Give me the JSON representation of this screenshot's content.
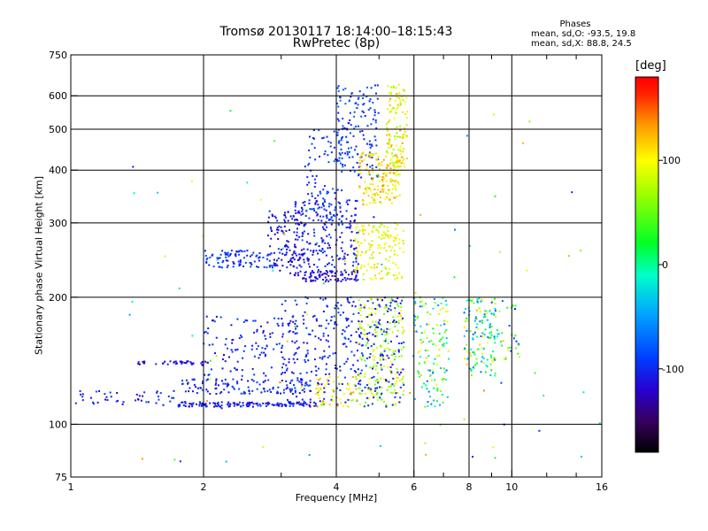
{
  "titles": {
    "line1": "Tromsø 20130117 18:14:00–18:15:43",
    "line2": "RwPretec (8p)"
  },
  "phases_box": {
    "title": "Phases",
    "o_line": "mean, sd,O: -93.5, 19.8",
    "x_line": "mean, sd,X: 88.8, 24.5"
  },
  "colorbar": {
    "unit_label": "[deg]",
    "range": [
      -180,
      180
    ],
    "ticks": [
      {
        "value": 100,
        "label": "100"
      },
      {
        "value": 0,
        "label": "0"
      },
      {
        "value": -100,
        "label": "-100"
      }
    ]
  },
  "chart_data": {
    "type": "scatter",
    "title": "Tromsø 20130117 18:14:00–18:15:43",
    "subtitle": "RwPretec (8p)",
    "xlabel": "Frequency [MHz]",
    "ylabel": "Stationary phase Virtual Height [km]",
    "x_scale": "log",
    "y_scale": "log",
    "xlim": [
      1,
      16
    ],
    "ylim": [
      75,
      750
    ],
    "grid": true,
    "x_ticks": [
      {
        "value": 1,
        "label": "1"
      },
      {
        "value": 2,
        "label": "2"
      },
      {
        "value": 4,
        "label": "4"
      },
      {
        "value": 6,
        "label": "6"
      },
      {
        "value": 8,
        "label": "8"
      },
      {
        "value": 10,
        "label": "10"
      },
      {
        "value": 16,
        "label": "16"
      }
    ],
    "x_gridlines": [
      2,
      4,
      6,
      8,
      10
    ],
    "x_minor_ticks": [
      3,
      5,
      7,
      9,
      12,
      14
    ],
    "y_ticks": [
      {
        "value": 75,
        "label": "75"
      },
      {
        "value": 100,
        "label": "100"
      },
      {
        "value": 200,
        "label": "200"
      },
      {
        "value": 300,
        "label": "300"
      },
      {
        "value": 400,
        "label": "400"
      },
      {
        "value": 500,
        "label": "500"
      },
      {
        "value": 600,
        "label": "600"
      },
      {
        "value": 750,
        "label": "750"
      }
    ],
    "y_gridlines": [
      100,
      200,
      300,
      400,
      500,
      600
    ],
    "color_value": "phase [deg]",
    "clusters": [
      {
        "x": [
          1.0,
          1.75
        ],
        "y": [
          111,
          120
        ],
        "phase": [
          -125,
          -85
        ],
        "n": 45
      },
      {
        "x": [
          1.75,
          3.6
        ],
        "y": [
          110,
          113
        ],
        "phase": [
          -125,
          -85
        ],
        "n": 140
      },
      {
        "x": [
          1.4,
          2.05
        ],
        "y": [
          138,
          141
        ],
        "phase": [
          -130,
          -100
        ],
        "n": 40
      },
      {
        "x": [
          1.75,
          3.5
        ],
        "y": [
          118,
          128
        ],
        "phase": [
          -125,
          -80
        ],
        "n": 120
      },
      {
        "x": [
          2.0,
          3.3
        ],
        "y": [
          130,
          180
        ],
        "phase": [
          -120,
          -85
        ],
        "n": 120
      },
      {
        "x": [
          2.0,
          2.9
        ],
        "y": [
          235,
          258
        ],
        "phase": [
          -110,
          -80
        ],
        "n": 90
      },
      {
        "x": [
          2.8,
          3.4
        ],
        "y": [
          225,
          320
        ],
        "phase": [
          -130,
          -90
        ],
        "n": 120
      },
      {
        "x": [
          3.3,
          4.5
        ],
        "y": [
          218,
          232
        ],
        "phase": [
          -130,
          -100
        ],
        "n": 90
      },
      {
        "x": [
          3.2,
          4.5
        ],
        "y": [
          235,
          340
        ],
        "phase": [
          -125,
          -85
        ],
        "n": 200
      },
      {
        "x": [
          3.4,
          4.2
        ],
        "y": [
          300,
          500
        ],
        "phase": [
          -110,
          -70
        ],
        "n": 90
      },
      {
        "x": [
          4.0,
          5.0
        ],
        "y": [
          380,
          640
        ],
        "phase": [
          -110,
          -70
        ],
        "n": 150
      },
      {
        "x": [
          3.0,
          4.6
        ],
        "y": [
          110,
          200
        ],
        "phase": [
          -120,
          -80
        ],
        "n": 220
      },
      {
        "x": [
          3.6,
          4.5
        ],
        "y": [
          110,
          130
        ],
        "phase": [
          60,
          140
        ],
        "n": 60
      },
      {
        "x": [
          4.5,
          5.7
        ],
        "y": [
          110,
          200
        ],
        "phase": [
          40,
          110
        ],
        "n": 200
      },
      {
        "x": [
          4.5,
          5.7
        ],
        "y": [
          110,
          200
        ],
        "phase": [
          -120,
          -80
        ],
        "n": 120
      },
      {
        "x": [
          4.4,
          5.7
        ],
        "y": [
          220,
          300
        ],
        "phase": [
          70,
          120
        ],
        "n": 150
      },
      {
        "x": [
          4.5,
          5.6
        ],
        "y": [
          330,
          440
        ],
        "phase": [
          80,
          140
        ],
        "n": 160
      },
      {
        "x": [
          5.2,
          5.8
        ],
        "y": [
          400,
          640
        ],
        "phase": [
          60,
          140
        ],
        "n": 120
      },
      {
        "x": [
          6.0,
          7.2
        ],
        "y": [
          110,
          200
        ],
        "phase": [
          -80,
          120
        ],
        "n": 130
      },
      {
        "x": [
          7.8,
          9.2
        ],
        "y": [
          130,
          200
        ],
        "phase": [
          -80,
          120
        ],
        "n": 130
      },
      {
        "x": [
          9.0,
          10.5
        ],
        "y": [
          140,
          200
        ],
        "phase": [
          -110,
          120
        ],
        "n": 40
      },
      {
        "x": [
          1.3,
          16.0
        ],
        "y": [
          80,
          600
        ],
        "phase": [
          -120,
          150
        ],
        "n": 80
      }
    ]
  }
}
